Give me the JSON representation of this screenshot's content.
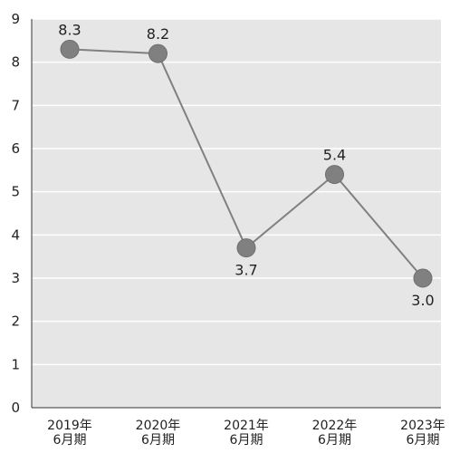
{
  "chart_data": {
    "type": "line",
    "title": "",
    "xlabel": "",
    "ylabel": "",
    "categories": [
      [
        "2019年",
        "6月期"
      ],
      [
        "2020年",
        "6月期"
      ],
      [
        "2021年",
        "6月期"
      ],
      [
        "2022年",
        "6月期"
      ],
      [
        "2023年",
        "6月期"
      ]
    ],
    "values": [
      8.3,
      8.2,
      3.7,
      5.4,
      3.0
    ],
    "data_labels": [
      "8.3",
      "8.2",
      "3.7",
      "5.4",
      "3.0"
    ],
    "label_positions": [
      "above",
      "above",
      "below",
      "above",
      "below"
    ],
    "ylim": [
      0,
      9
    ],
    "y_ticks": [
      0,
      1,
      2,
      3,
      4,
      5,
      6,
      7,
      8,
      9
    ],
    "grid": true,
    "legend": "none",
    "colors": {
      "plot_background": "#e6e6e6",
      "gridline": "#ffffff",
      "line": "#808080",
      "marker": "#808080",
      "text": "#222222",
      "axis": "#333333"
    }
  }
}
